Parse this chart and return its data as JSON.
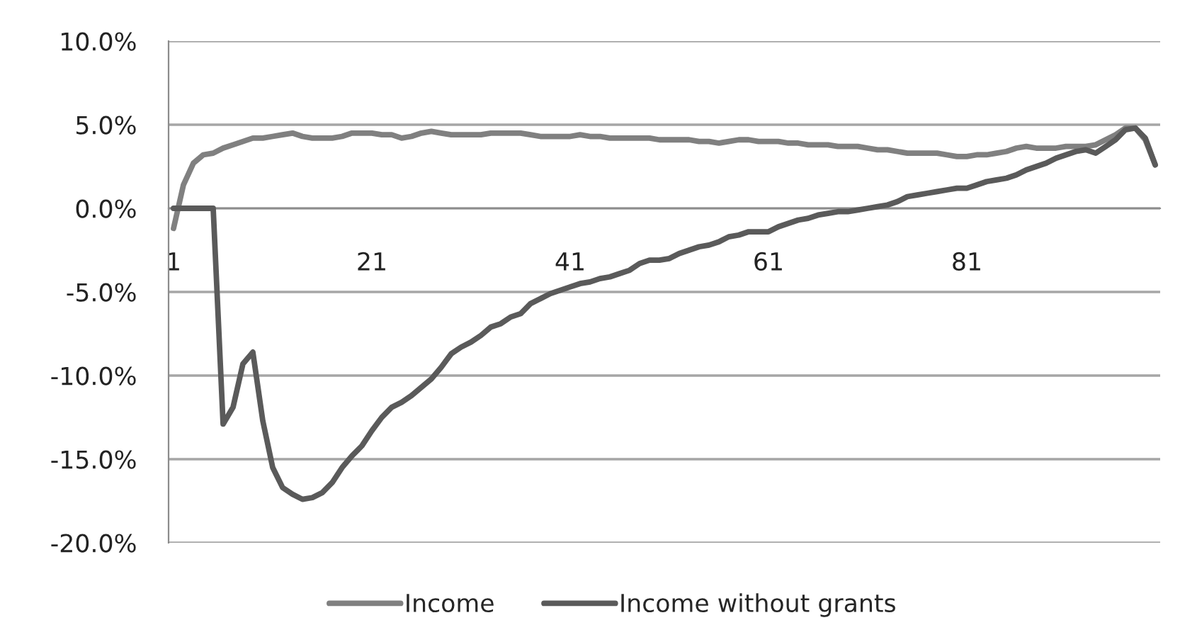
{
  "chart_data": {
    "type": "line",
    "categories": [
      "1",
      null,
      null,
      null,
      null,
      null,
      null,
      null,
      null,
      null,
      null,
      null,
      null,
      null,
      null,
      null,
      null,
      null,
      null,
      null,
      "21",
      null,
      null,
      null,
      null,
      null,
      null,
      null,
      null,
      null,
      null,
      null,
      null,
      null,
      null,
      null,
      null,
      null,
      null,
      null,
      "41",
      null,
      null,
      null,
      null,
      null,
      null,
      null,
      null,
      null,
      null,
      null,
      null,
      null,
      null,
      null,
      null,
      null,
      null,
      null,
      "61",
      null,
      null,
      null,
      null,
      null,
      null,
      null,
      null,
      null,
      null,
      null,
      null,
      null,
      null,
      null,
      null,
      null,
      null,
      null,
      "81",
      null,
      null,
      null,
      null,
      null,
      null,
      null,
      null,
      null,
      null,
      null,
      null,
      null,
      null,
      null,
      null,
      null,
      null,
      null
    ],
    "series": [
      {
        "name": "Income",
        "color": "#808080",
        "values": [
          -1.2,
          1.4,
          2.7,
          3.2,
          3.3,
          3.6,
          3.8,
          4.0,
          4.2,
          4.2,
          4.3,
          4.4,
          4.5,
          4.3,
          4.2,
          4.2,
          4.2,
          4.3,
          4.5,
          4.5,
          4.5,
          4.4,
          4.4,
          4.2,
          4.3,
          4.5,
          4.6,
          4.5,
          4.4,
          4.4,
          4.4,
          4.4,
          4.5,
          4.5,
          4.5,
          4.5,
          4.4,
          4.3,
          4.3,
          4.3,
          4.3,
          4.4,
          4.3,
          4.3,
          4.2,
          4.2,
          4.2,
          4.2,
          4.2,
          4.1,
          4.1,
          4.1,
          4.1,
          4.0,
          4.0,
          3.9,
          4.0,
          4.1,
          4.1,
          4.0,
          4.0,
          4.0,
          3.9,
          3.9,
          3.8,
          3.8,
          3.8,
          3.7,
          3.7,
          3.7,
          3.6,
          3.5,
          3.5,
          3.4,
          3.3,
          3.3,
          3.3,
          3.3,
          3.2,
          3.1,
          3.1,
          3.2,
          3.2,
          3.3,
          3.4,
          3.6,
          3.7,
          3.6,
          3.6,
          3.6,
          3.7,
          3.7,
          3.7,
          3.8,
          4.1,
          4.4,
          4.8,
          4.8,
          4.1,
          2.6
        ]
      },
      {
        "name": "Income without grants",
        "color": "#5a5a5a",
        "values": [
          0,
          0,
          0,
          0,
          0,
          -12.9,
          -11.9,
          -9.3,
          -8.6,
          -12.7,
          -15.5,
          -16.7,
          -17.1,
          -17.4,
          -17.3,
          -17.0,
          -16.4,
          -15.5,
          -14.8,
          -14.2,
          -13.3,
          -12.5,
          -11.9,
          -11.6,
          -11.2,
          -10.7,
          -10.2,
          -9.5,
          -8.7,
          -8.3,
          -8.0,
          -7.6,
          -7.1,
          -6.9,
          -6.5,
          -6.3,
          -5.7,
          -5.4,
          -5.1,
          -4.9,
          -4.7,
          -4.5,
          -4.4,
          -4.2,
          -4.1,
          -3.9,
          -3.7,
          -3.3,
          -3.1,
          -3.1,
          -3.0,
          -2.7,
          -2.5,
          -2.3,
          -2.2,
          -2.0,
          -1.7,
          -1.6,
          -1.4,
          -1.4,
          -1.4,
          -1.1,
          -0.9,
          -0.7,
          -0.6,
          -0.4,
          -0.3,
          -0.2,
          -0.2,
          -0.1,
          0.0,
          0.1,
          0.2,
          0.4,
          0.7,
          0.8,
          0.9,
          1.0,
          1.1,
          1.2,
          1.2,
          1.4,
          1.6,
          1.7,
          1.8,
          2.0,
          2.3,
          2.5,
          2.7,
          3.0,
          3.2,
          3.4,
          3.5,
          3.3,
          3.7,
          4.1,
          4.7,
          4.8,
          4.2,
          2.6
        ]
      }
    ],
    "ylim": [
      -20,
      10
    ],
    "yticks": [
      {
        "value": -20,
        "label": "-20.0%"
      },
      {
        "value": -15,
        "label": "-15.0%"
      },
      {
        "value": -10,
        "label": "-10.0%"
      },
      {
        "value": -5,
        "label": "-5.0%"
      },
      {
        "value": 0,
        "label": "0.0%"
      },
      {
        "value": 5,
        "label": "5.0%"
      },
      {
        "value": 10,
        "label": "10.0%"
      }
    ],
    "grid": "y",
    "legend": "bottom"
  }
}
